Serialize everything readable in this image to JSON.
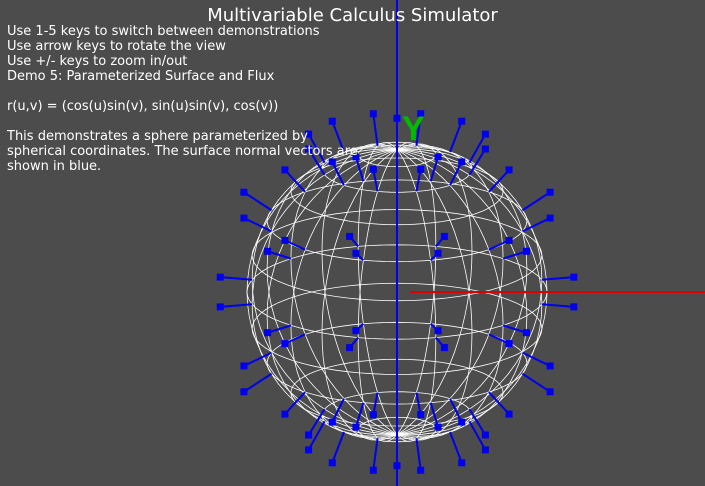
{
  "title": "Multivariable Calculus Simulator",
  "instructions": [
    "Use 1-5 keys to switch between demonstrations",
    "Use arrow keys to rotate the view",
    "Use +/- keys to zoom in/out",
    "Demo 5: Parameterized Surface and Flux"
  ],
  "formula": "r(u,v) = (cos(u)sin(v), sin(u)sin(v), cos(v))",
  "description": "This demonstrates a sphere parameterized by spherical coordinates. The surface normal vectors are shown in blue.",
  "axis_label_y": "Y",
  "colors": {
    "background": "#4c4c4c",
    "wireframe": "#ffffff",
    "normals": "#0000ee",
    "x_axis": "#dd0000",
    "y_axis": "#0000ee",
    "y_label": "#00bb00"
  }
}
